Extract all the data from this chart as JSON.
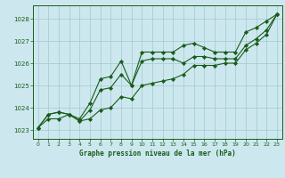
{
  "title": "Graphe pression niveau de la mer (hPa)",
  "bg_color": "#cce8ee",
  "grid_color": "#a8cdd4",
  "line_color": "#1a5c1a",
  "xlim": [
    -0.5,
    23.5
  ],
  "ylim": [
    1022.6,
    1028.6
  ],
  "yticks": [
    1023,
    1024,
    1025,
    1026,
    1027,
    1028
  ],
  "xticks": [
    0,
    1,
    2,
    3,
    4,
    5,
    6,
    7,
    8,
    9,
    10,
    11,
    12,
    13,
    14,
    15,
    16,
    17,
    18,
    19,
    20,
    21,
    22,
    23
  ],
  "series1_x": [
    0,
    1,
    2,
    3,
    4,
    5,
    6,
    7,
    8,
    9,
    10,
    11,
    12,
    13,
    14,
    15,
    16,
    17,
    18,
    19,
    20,
    21,
    22,
    23
  ],
  "series1_y": [
    1023.1,
    1023.7,
    1023.8,
    1023.7,
    1023.5,
    1024.2,
    1025.3,
    1025.4,
    1026.1,
    1025.0,
    1026.5,
    1026.5,
    1026.5,
    1026.5,
    1026.8,
    1026.9,
    1026.7,
    1026.5,
    1026.5,
    1026.5,
    1027.4,
    1027.6,
    1027.9,
    1028.2
  ],
  "series2_x": [
    0,
    1,
    2,
    3,
    4,
    5,
    6,
    7,
    8,
    9,
    10,
    11,
    12,
    13,
    14,
    15,
    16,
    17,
    18,
    19,
    20,
    21,
    22,
    23
  ],
  "series2_y": [
    1023.1,
    1023.7,
    1023.8,
    1023.7,
    1023.4,
    1023.9,
    1024.8,
    1024.9,
    1025.5,
    1025.0,
    1026.1,
    1026.2,
    1026.2,
    1026.2,
    1026.0,
    1026.3,
    1026.3,
    1026.2,
    1026.2,
    1026.2,
    1026.8,
    1027.1,
    1027.5,
    1028.2
  ],
  "series3_x": [
    0,
    1,
    2,
    3,
    4,
    5,
    6,
    7,
    8,
    9,
    10,
    11,
    12,
    13,
    14,
    15,
    16,
    17,
    18,
    19,
    20,
    21,
    22,
    23
  ],
  "series3_y": [
    1023.1,
    1023.5,
    1023.5,
    1023.7,
    1023.4,
    1023.5,
    1023.9,
    1024.0,
    1024.5,
    1024.4,
    1025.0,
    1025.1,
    1025.2,
    1025.3,
    1025.5,
    1025.9,
    1025.9,
    1025.9,
    1026.0,
    1026.0,
    1026.6,
    1026.9,
    1027.3,
    1028.2
  ],
  "tick_fontsize": 5,
  "xlabel_fontsize": 5.5,
  "lw": 0.8,
  "ms": 2.2
}
